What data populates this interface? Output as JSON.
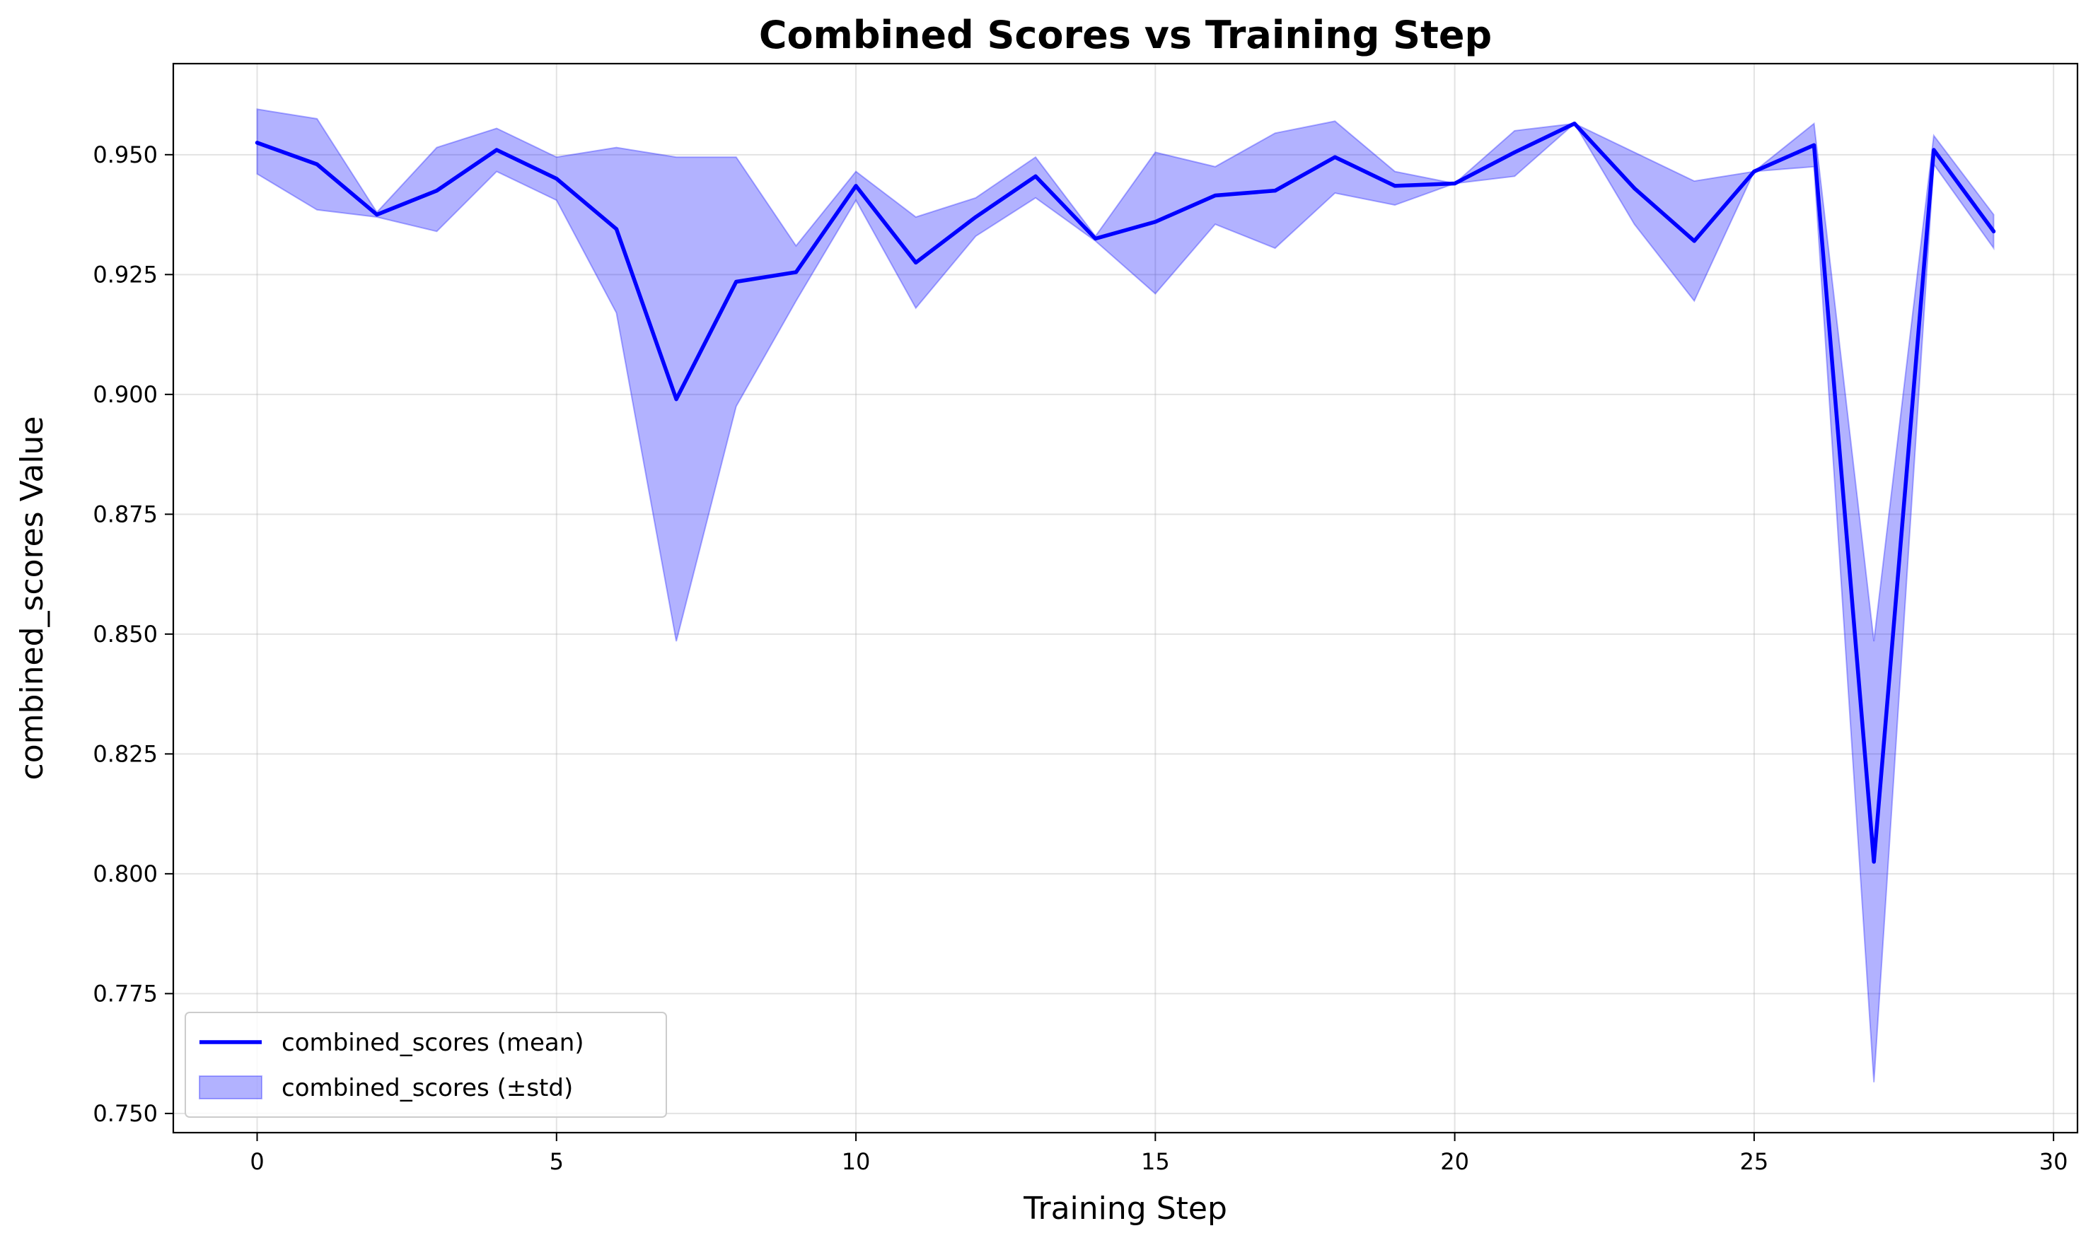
{
  "chart_data": {
    "type": "line",
    "title": "Combined Scores vs Training Step",
    "xlabel": "Training Step",
    "ylabel": "combined_scores Value",
    "xlim": [
      -1.4,
      30.4
    ],
    "ylim": [
      0.746,
      0.969
    ],
    "x_ticks": [
      0,
      5,
      10,
      15,
      20,
      25,
      30
    ],
    "y_ticks": [
      0.75,
      0.775,
      0.8,
      0.825,
      0.85,
      0.875,
      0.9,
      0.925,
      0.95
    ],
    "x_tick_labels": [
      "0",
      "5",
      "10",
      "15",
      "20",
      "25",
      "30"
    ],
    "y_tick_labels": [
      "0.750",
      "0.775",
      "0.800",
      "0.825",
      "0.850",
      "0.875",
      "0.900",
      "0.925",
      "0.950"
    ],
    "grid": true,
    "legend_position": "lower-left",
    "x": [
      0,
      1,
      2,
      3,
      4,
      5,
      6,
      7,
      8,
      9,
      10,
      11,
      12,
      13,
      14,
      15,
      16,
      17,
      18,
      19,
      20,
      21,
      22,
      23,
      24,
      25,
      26,
      27,
      28,
      29
    ],
    "series": [
      {
        "name": "combined_scores (mean)",
        "color": "#0000ff",
        "values": [
          0.9525,
          0.948,
          0.9375,
          0.9425,
          0.951,
          0.945,
          0.9345,
          0.899,
          0.9235,
          0.9255,
          0.9435,
          0.9275,
          0.937,
          0.9455,
          0.9325,
          0.936,
          0.9415,
          0.9425,
          0.9495,
          0.9435,
          0.944,
          0.9505,
          0.9565,
          0.943,
          0.932,
          0.9465,
          0.952,
          0.8025,
          0.951,
          0.934
        ]
      },
      {
        "name": "combined_scores (±std)",
        "color": "#0000ff",
        "fill_opacity": 0.3,
        "upper": [
          0.9595,
          0.9575,
          0.938,
          0.9515,
          0.9555,
          0.9495,
          0.9515,
          0.9495,
          0.9495,
          0.931,
          0.9465,
          0.937,
          0.941,
          0.9495,
          0.933,
          0.9505,
          0.9475,
          0.9545,
          0.957,
          0.9465,
          0.944,
          0.955,
          0.9565,
          0.9505,
          0.9445,
          0.9465,
          0.9565,
          0.8485,
          0.954,
          0.9375
        ],
        "lower": [
          0.946,
          0.9385,
          0.937,
          0.934,
          0.9465,
          0.9405,
          0.917,
          0.8485,
          0.8975,
          0.9195,
          0.9405,
          0.918,
          0.933,
          0.941,
          0.932,
          0.921,
          0.9355,
          0.9305,
          0.942,
          0.9395,
          0.944,
          0.9455,
          0.9565,
          0.9355,
          0.9195,
          0.9465,
          0.9475,
          0.7565,
          0.948,
          0.9305
        ]
      }
    ]
  }
}
